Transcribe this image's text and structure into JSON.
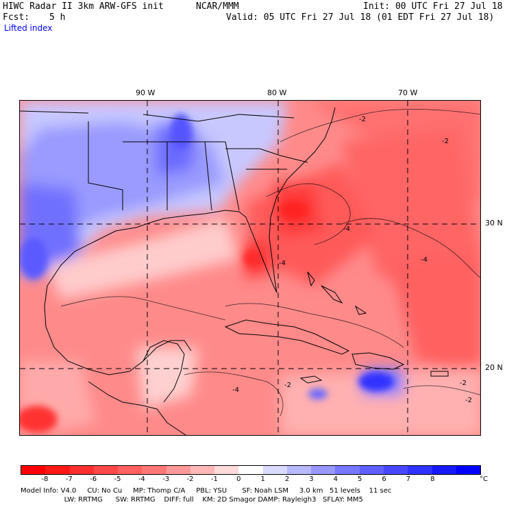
{
  "header": {
    "title": "HIWC Radar II 3km ARW-GFS init",
    "org": "NCAR/MMM",
    "init": "Init: 00 UTC Fri 27 Jul 18",
    "fcst_label": "Fcst:",
    "fcst_value": "5 h",
    "valid": "Valid: 05 UTC Fri 27 Jul 18 (01 EDT Fri 27 Jul 18)",
    "field": "Lifted index"
  },
  "axes": {
    "lon_labels": [
      "90 W",
      "80 W",
      "70 W"
    ],
    "lat_labels": [
      "30 N",
      "20 N"
    ]
  },
  "contour_labels": [
    "-2",
    "-4",
    "-4",
    "-2",
    "-4",
    "-2",
    "-4",
    "-2",
    "-2"
  ],
  "colorbar": {
    "unit": "°C",
    "tick_labels": [
      "-8",
      "-7",
      "-6",
      "-5",
      "-4",
      "-3",
      "-2",
      "-1",
      "0",
      "1",
      "2",
      "3",
      "4",
      "5",
      "6",
      "7",
      "8"
    ],
    "colors": [
      "#ff0000",
      "#ff1818",
      "#ff3030",
      "#ff4848",
      "#ff6060",
      "#ff7878",
      "#ff9898",
      "#ffb8b8",
      "#ffdada",
      "#ffffff",
      "#dadaff",
      "#b8b8ff",
      "#9898ff",
      "#7878ff",
      "#6060ff",
      "#4848ff",
      "#3030ff",
      "#1818ff",
      "#0000ff"
    ]
  },
  "footer": {
    "line1": "Model Info: V4.0     CU: No Cu     MP: Thomp C/A     PBL: YSU       SF: Noah LSM     3.0 km   51 levels    11 sec",
    "line2": "                    LW: RRTMG      SW: RRTMG    DIFF: full    KM: 2D Smagor DAMP: Rayleigh3   SFLAY: MM5"
  }
}
